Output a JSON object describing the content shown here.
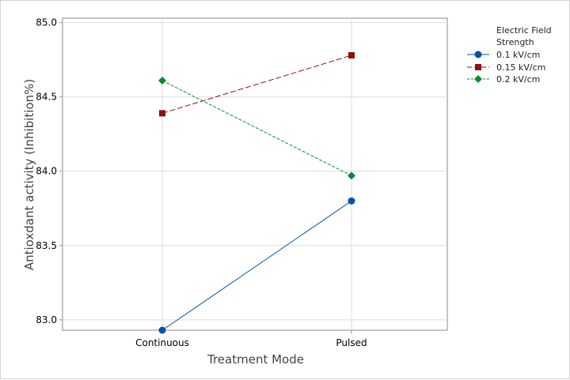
{
  "chart_data": {
    "type": "line",
    "title": "",
    "xlabel": "Treatment Mode",
    "ylabel": "Antioxdant activity (Inhibition%)",
    "categories": [
      "Continuous",
      "Pulsed"
    ],
    "ylim": [
      82.93,
      85.03
    ],
    "yticks": [
      83.0,
      83.5,
      84.0,
      84.5,
      85.0
    ],
    "ytick_labels": [
      "83.0",
      "83.5",
      "84.0",
      "84.5",
      "85.0"
    ],
    "grid": true,
    "legend_position": "right",
    "legend_title_lines": [
      "Electric Field",
      "Strength"
    ],
    "series": [
      {
        "name": "0.1 kV/cm",
        "values": [
          82.93,
          83.8
        ],
        "color": "#0054a6",
        "marker": "circle",
        "line_style": "solid"
      },
      {
        "name": "0.15 kV/cm",
        "values": [
          84.39,
          84.78
        ],
        "color": "#8b1010",
        "marker": "square",
        "line_style": "long-dash"
      },
      {
        "name": "0.2 kV/cm",
        "values": [
          84.61,
          83.97
        ],
        "color": "#0a8a2f",
        "marker": "diamond",
        "line_style": "short-dash"
      }
    ]
  }
}
